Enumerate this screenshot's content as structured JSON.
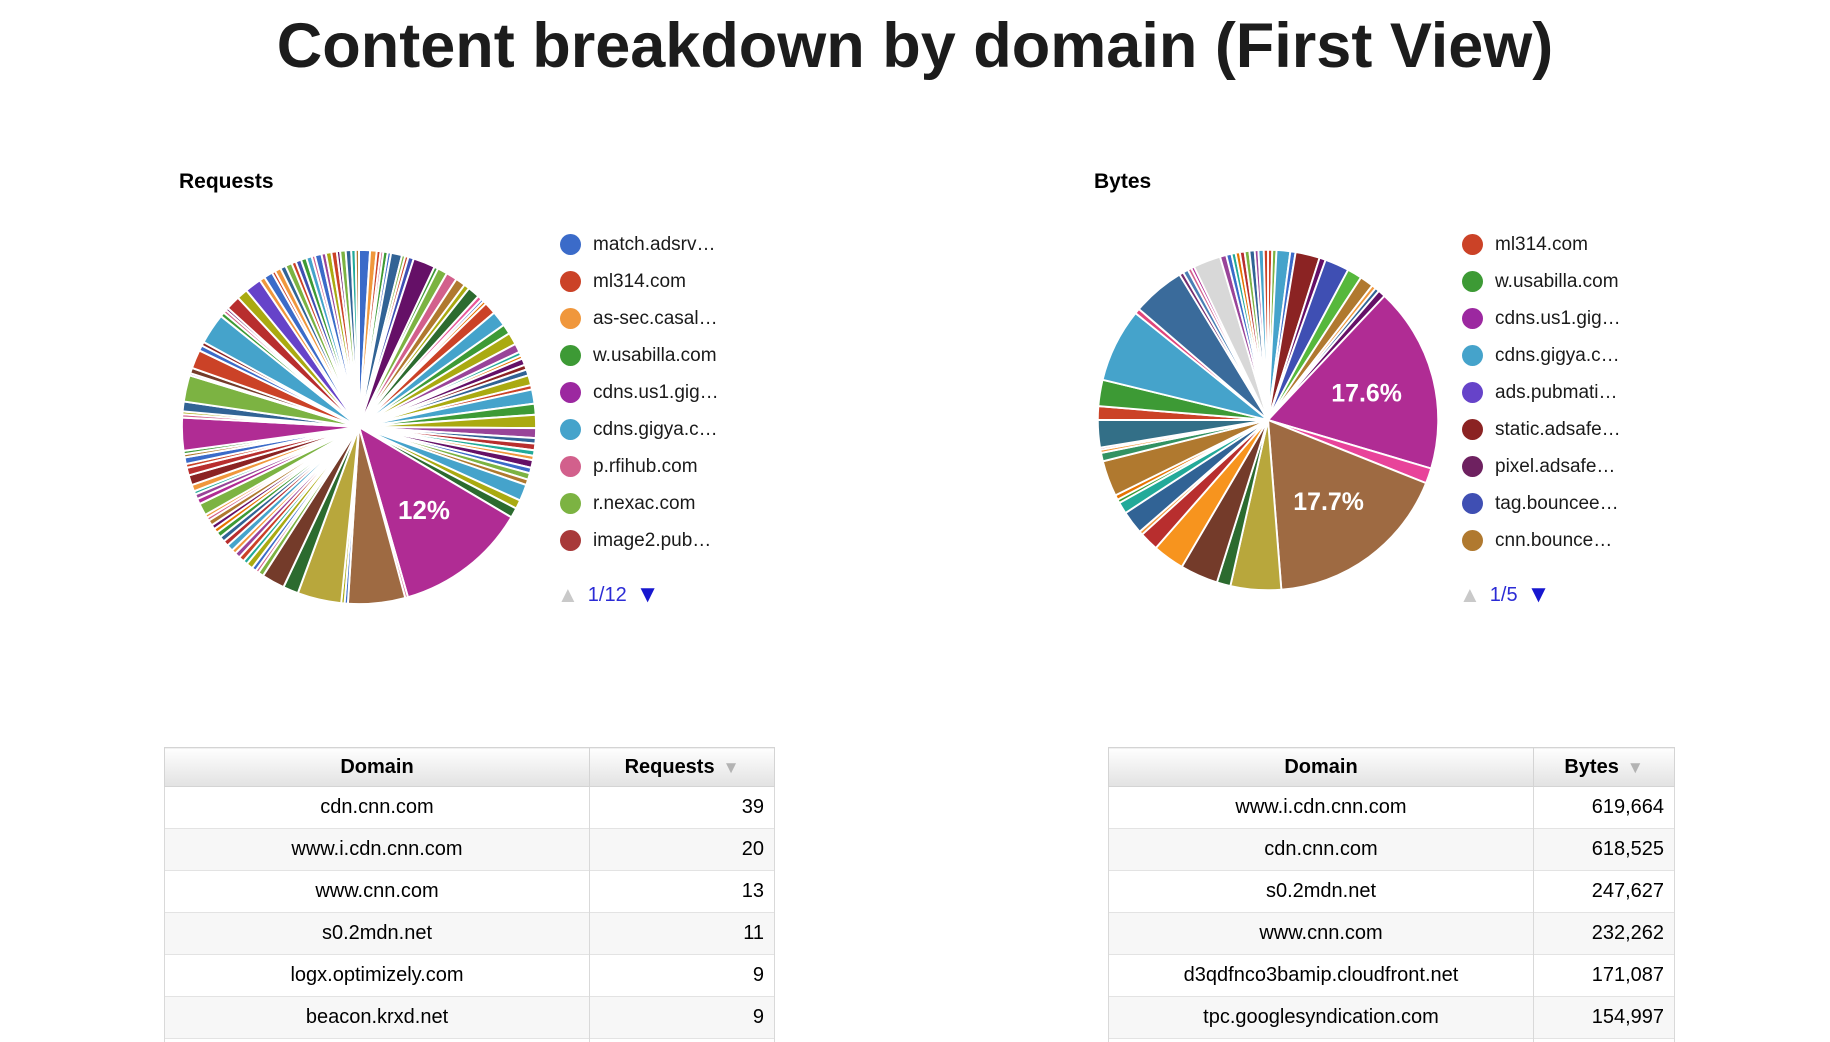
{
  "page": {
    "title": "Content breakdown by domain (First View)"
  },
  "colors": {
    "pager_text_blue": "#2b2bd5",
    "pager_arrow_active": "#1717cf",
    "pager_arrow_disabled": "#c9c9c9",
    "sort_arrow_gray": "#b3b3b3",
    "big_magenta": "#B02C94",
    "big_brown": "#9E6A42"
  },
  "chart_data": [
    {
      "type": "pie",
      "title": "Requests",
      "legend": [
        {
          "label": "match.adsrv…",
          "color": "#3B6BC9"
        },
        {
          "label": "ml314.com",
          "color": "#CB4227"
        },
        {
          "label": "as-sec.casal…",
          "color": "#F0973C"
        },
        {
          "label": "w.usabilla.com",
          "color": "#3D9A35"
        },
        {
          "label": "cdns.us1.gig…",
          "color": "#9C28A0"
        },
        {
          "label": "cdns.gigya.c…",
          "color": "#45A3CB"
        },
        {
          "label": "p.rfihub.com",
          "color": "#D2608C"
        },
        {
          "label": "r.nexac.com",
          "color": "#7CB342"
        },
        {
          "label": "image2.pub…",
          "color": "#A83939"
        }
      ],
      "pagination": {
        "page": "1/12"
      },
      "labeled_slices": [
        {
          "label": "12%",
          "value": 12
        }
      ],
      "slices": [
        {
          "c": "#3B6BC9",
          "v": 1.0
        },
        {
          "c": "#F0973C",
          "v": 0.6
        },
        {
          "c": "#CB4227",
          "v": 0.35
        },
        {
          "c": "#D2608C",
          "v": 0.25
        },
        {
          "c": "#3D9A35",
          "v": 0.4
        },
        {
          "c": "#3B6BC9",
          "v": 0.3
        },
        {
          "c": "#316395",
          "v": 1.0
        },
        {
          "c": "#7CB342",
          "v": 0.3
        },
        {
          "c": "#CB4227",
          "v": 0.3
        },
        {
          "c": "#3F4FB3",
          "v": 0.5
        },
        {
          "c": "#651067",
          "v": 2.0
        },
        {
          "c": "#3D9A35",
          "v": 0.35
        },
        {
          "c": "#7CB342",
          "v": 0.9
        },
        {
          "c": "#D2608C",
          "v": 1.0
        },
        {
          "c": "#B0792F",
          "v": 0.9
        },
        {
          "c": "#AAAA11",
          "v": 0.5
        },
        {
          "c": "#2C6B2F",
          "v": 1.1
        },
        {
          "c": "#E8589B",
          "v": 0.4
        },
        {
          "c": "#3B6BC9",
          "v": 0.25
        },
        {
          "c": "#E67300",
          "v": 0.3
        },
        {
          "c": "#CB4227",
          "v": 1.1
        },
        {
          "c": "#45A3CB",
          "v": 1.4
        },
        {
          "c": "#3D9A35",
          "v": 0.9
        },
        {
          "c": "#AAAA11",
          "v": 1.1
        },
        {
          "c": "#994499",
          "v": 0.8
        },
        {
          "c": "#22AA99",
          "v": 0.35
        },
        {
          "c": "#E67300",
          "v": 0.3
        },
        {
          "c": "#651067",
          "v": 0.6
        },
        {
          "c": "#8B2323",
          "v": 0.45
        },
        {
          "c": "#316395",
          "v": 0.55
        },
        {
          "c": "#AAAA11",
          "v": 0.9
        },
        {
          "c": "#CB4227",
          "v": 0.4
        },
        {
          "c": "#45A3CB",
          "v": 1.3
        },
        {
          "c": "#3D9A35",
          "v": 1.0
        },
        {
          "c": "#AAAA11",
          "v": 1.2
        },
        {
          "c": "#994499",
          "v": 0.9
        },
        {
          "c": "#316395",
          "v": 0.5
        },
        {
          "c": "#B82E2E",
          "v": 0.6
        },
        {
          "c": "#22AA99",
          "v": 0.5
        },
        {
          "c": "#F0973C",
          "v": 0.4
        },
        {
          "c": "#651067",
          "v": 0.7
        },
        {
          "c": "#3B6BC9",
          "v": 0.5
        },
        {
          "c": "#7CB342",
          "v": 0.6
        },
        {
          "c": "#B0792F",
          "v": 0.5
        },
        {
          "c": "#45A3CB",
          "v": 1.5
        },
        {
          "c": "#AAAA11",
          "v": 0.8
        },
        {
          "c": "#2C6B2F",
          "v": 0.9
        },
        {
          "c": "#B02C94",
          "v": 12,
          "l": "12%"
        },
        {
          "c": "#D2608C",
          "v": 0.25
        },
        {
          "c": "#9E6A42",
          "v": 5.2
        },
        {
          "c": "#3B6BC9",
          "v": 0.3
        },
        {
          "c": "#AAAA11",
          "v": 0.3
        },
        {
          "c": "#B8A73C",
          "v": 4.0
        },
        {
          "c": "#2C6B2F",
          "v": 1.4
        },
        {
          "c": "#743B2A",
          "v": 2.1
        },
        {
          "c": "#7CB342",
          "v": 0.5
        },
        {
          "c": "#D2608C",
          "v": 0.3
        },
        {
          "c": "#3B6BC9",
          "v": 0.4
        },
        {
          "c": "#AAAA11",
          "v": 0.6
        },
        {
          "c": "#22AA99",
          "v": 0.4
        },
        {
          "c": "#CB4227",
          "v": 0.5
        },
        {
          "c": "#994499",
          "v": 0.5
        },
        {
          "c": "#F0973C",
          "v": 0.4
        },
        {
          "c": "#45A3CB",
          "v": 0.6
        },
        {
          "c": "#B82E2E",
          "v": 0.5
        },
        {
          "c": "#316395",
          "v": 0.5
        },
        {
          "c": "#3D9A35",
          "v": 0.5
        },
        {
          "c": "#E67300",
          "v": 0.4
        },
        {
          "c": "#651067",
          "v": 0.4
        },
        {
          "c": "#B0792F",
          "v": 0.5
        },
        {
          "c": "#D2608C",
          "v": 0.3
        },
        {
          "c": "#F0973C",
          "v": 0.3
        },
        {
          "c": "#7CB342",
          "v": 1.1
        },
        {
          "c": "#B02C94",
          "v": 0.5
        },
        {
          "c": "#994499",
          "v": 0.45
        },
        {
          "c": "#22AA99",
          "v": 0.3
        },
        {
          "c": "#F0973C",
          "v": 0.6
        },
        {
          "c": "#8B2323",
          "v": 0.9
        },
        {
          "c": "#B82E2E",
          "v": 0.7
        },
        {
          "c": "#CB4227",
          "v": 0.35
        },
        {
          "c": "#3B6BC9",
          "v": 0.6
        },
        {
          "c": "#B0792F",
          "v": 0.3
        },
        {
          "c": "#3D9A35",
          "v": 0.3
        },
        {
          "c": "#B02C94",
          "v": 3.0
        },
        {
          "c": "#D2608C",
          "v": 0.3
        },
        {
          "c": "#AAAA11",
          "v": 0.25
        },
        {
          "c": "#316395",
          "v": 0.9
        },
        {
          "c": "#7CB342",
          "v": 2.4
        },
        {
          "c": "#994499",
          "v": 0.2
        },
        {
          "c": "#743B2A",
          "v": 0.5
        },
        {
          "c": "#CB4227",
          "v": 1.7
        },
        {
          "c": "#3B6BC9",
          "v": 0.5
        },
        {
          "c": "#8B2323",
          "v": 0.35
        },
        {
          "c": "#45A3CB",
          "v": 2.8
        },
        {
          "c": "#3D9A35",
          "v": 0.4
        },
        {
          "c": "#D2608C",
          "v": 0.3
        },
        {
          "c": "#651067",
          "v": 0.25
        },
        {
          "c": "#B82E2E",
          "v": 1.3
        },
        {
          "c": "#AAAA11",
          "v": 1.0
        },
        {
          "c": "#6643C9",
          "v": 1.5
        },
        {
          "c": "#F0973C",
          "v": 0.5
        },
        {
          "c": "#3B6BC9",
          "v": 0.8
        },
        {
          "c": "#CB4227",
          "v": 0.3
        },
        {
          "c": "#F0973C",
          "v": 0.55
        },
        {
          "c": "#316395",
          "v": 0.5
        },
        {
          "c": "#7CB342",
          "v": 0.6
        },
        {
          "c": "#CB4227",
          "v": 0.4
        },
        {
          "c": "#3F4FB3",
          "v": 0.5
        },
        {
          "c": "#3D9A35",
          "v": 0.5
        },
        {
          "c": "#45A3CB",
          "v": 0.5
        },
        {
          "c": "#D2608C",
          "v": 0.3
        },
        {
          "c": "#3B6BC9",
          "v": 0.6
        },
        {
          "c": "#994499",
          "v": 0.4
        },
        {
          "c": "#AAAA11",
          "v": 0.5
        },
        {
          "c": "#CB4227",
          "v": 0.5
        },
        {
          "c": "#651067",
          "v": 0.3
        },
        {
          "c": "#7CB342",
          "v": 0.5
        },
        {
          "c": "#316395",
          "v": 0.5
        },
        {
          "c": "#22AA99",
          "v": 0.4
        },
        {
          "c": "#B0792F",
          "v": 0.3
        }
      ]
    },
    {
      "type": "pie",
      "title": "Bytes",
      "legend": [
        {
          "label": "ml314.com",
          "color": "#CB4227"
        },
        {
          "label": "w.usabilla.com",
          "color": "#3D9A35"
        },
        {
          "label": "cdns.us1.gig…",
          "color": "#9C28A0"
        },
        {
          "label": "cdns.gigya.c…",
          "color": "#45A3CB"
        },
        {
          "label": "ads.pubmati…",
          "color": "#6643C9"
        },
        {
          "label": "static.adsafe…",
          "color": "#8B2323"
        },
        {
          "label": "pixel.adsafe…",
          "color": "#6E2160"
        },
        {
          "label": "tag.bouncee…",
          "color": "#3F4FB3"
        },
        {
          "label": "cnn.bounce…",
          "color": "#B0792F"
        }
      ],
      "pagination": {
        "page": "1/5"
      },
      "labeled_slices": [
        {
          "label": "17.6%",
          "value": 17.6
        },
        {
          "label": "17.7%",
          "value": 17.7
        }
      ],
      "slices": [
        {
          "c": "#CB4227",
          "v": 0.4
        },
        {
          "c": "#7CB342",
          "v": 0.4
        },
        {
          "c": "#45A3CB",
          "v": 1.3
        },
        {
          "c": "#3B6BC9",
          "v": 0.5
        },
        {
          "c": "#8B2323",
          "v": 2.3
        },
        {
          "c": "#651067",
          "v": 0.6
        },
        {
          "c": "#3F4FB3",
          "v": 2.3
        },
        {
          "c": "#56B83C",
          "v": 1.4
        },
        {
          "c": "#B0792F",
          "v": 1.3
        },
        {
          "c": "#F0973C",
          "v": 0.4
        },
        {
          "c": "#316395",
          "v": 0.4
        },
        {
          "c": "#651067",
          "v": 0.7
        },
        {
          "c": "#B02C94",
          "v": 17.6,
          "l": "17.6%"
        },
        {
          "c": "#E8439A",
          "v": 1.45
        },
        {
          "c": "#9E6A42",
          "v": 17.7,
          "l": "17.7%"
        },
        {
          "c": "#B8A73C",
          "v": 4.8
        },
        {
          "c": "#2C6B2F",
          "v": 1.3
        },
        {
          "c": "#743B2A",
          "v": 3.6
        },
        {
          "c": "#F7941E",
          "v": 3.0
        },
        {
          "c": "#B82E2E",
          "v": 1.8
        },
        {
          "c": "#F0973C",
          "v": 0.35
        },
        {
          "c": "#316395",
          "v": 2.2
        },
        {
          "c": "#22AA99",
          "v": 1.1
        },
        {
          "c": "#3D9A35",
          "v": 0.35
        },
        {
          "c": "#E67300",
          "v": 0.45
        },
        {
          "c": "#B0792F",
          "v": 3.4
        },
        {
          "c": "#329262",
          "v": 0.8
        },
        {
          "c": "#F0973C",
          "v": 0.3
        },
        {
          "c": "#D2608C",
          "v": 0.2
        },
        {
          "c": "#336F87",
          "v": 2.6
        },
        {
          "c": "#CB4227",
          "v": 1.3
        },
        {
          "c": "#3D9A35",
          "v": 2.5
        },
        {
          "c": "#45A3CB",
          "v": 7.0
        },
        {
          "c": "#E0457B",
          "v": 0.5
        },
        {
          "c": "#3A6B9B",
          "v": 5.0
        },
        {
          "c": "#762C6E",
          "v": 0.4
        },
        {
          "c": "#4A7FB5",
          "v": 0.5
        },
        {
          "c": "#D2608C",
          "v": 0.35
        },
        {
          "c": "#B02C94",
          "v": 0.3
        },
        {
          "c": "#D8D8D8",
          "v": 2.6
        },
        {
          "c": "#994499",
          "v": 0.6
        },
        {
          "c": "#3B6BC9",
          "v": 0.5
        },
        {
          "c": "#22AA99",
          "v": 0.4
        },
        {
          "c": "#E67300",
          "v": 0.4
        },
        {
          "c": "#B82E2E",
          "v": 0.45
        },
        {
          "c": "#7CB342",
          "v": 0.45
        },
        {
          "c": "#316395",
          "v": 0.5
        },
        {
          "c": "#994499",
          "v": 0.35
        },
        {
          "c": "#45A3CB",
          "v": 0.5
        },
        {
          "c": "#CB4227",
          "v": 0.4
        }
      ]
    }
  ],
  "tables": [
    {
      "headers": [
        "Domain",
        "Requests"
      ],
      "sort_icon": "▼",
      "rows": [
        [
          "cdn.cnn.com",
          "39"
        ],
        [
          "www.i.cdn.cnn.com",
          "20"
        ],
        [
          "www.cnn.com",
          "13"
        ],
        [
          "s0.2mdn.net",
          "11"
        ],
        [
          "logx.optimizely.com",
          "9"
        ],
        [
          "beacon.krxd.net",
          "9"
        ]
      ]
    },
    {
      "headers": [
        "Domain",
        "Bytes"
      ],
      "sort_icon": "▼",
      "rows": [
        [
          "www.i.cdn.cnn.com",
          "619,664"
        ],
        [
          "cdn.cnn.com",
          "618,525"
        ],
        [
          "s0.2mdn.net",
          "247,627"
        ],
        [
          "www.cnn.com",
          "232,262"
        ],
        [
          "d3qdfnco3bamip.cloudfront.net",
          "171,087"
        ],
        [
          "tpc.googlesyndication.com",
          "154,997"
        ]
      ]
    }
  ],
  "pager_icons": {
    "up": "▲",
    "down": "▼"
  }
}
